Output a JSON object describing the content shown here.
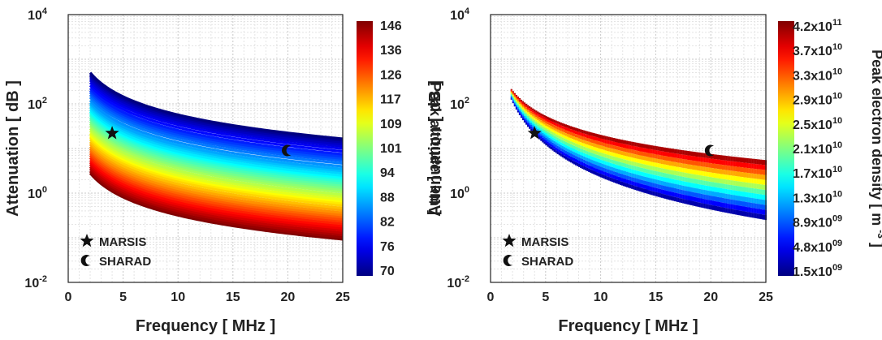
{
  "chart_data": [
    {
      "type": "line",
      "xlabel": "Frequency [ MHz ]",
      "ylabel": "Attenuation [ dB ]",
      "xlim": [
        0,
        25
      ],
      "ylim": [
        0.01,
        10000
      ],
      "yscale": "log",
      "grid": true,
      "x_ticks": [
        "0",
        "5",
        "10",
        "15",
        "20",
        "25"
      ],
      "y_ticks": [
        {
          "base": "10",
          "exp": "-2"
        },
        {
          "base": "10",
          "exp": "0"
        },
        {
          "base": "10",
          "exp": "2"
        },
        {
          "base": "10",
          "exp": "4"
        }
      ],
      "colorbar": {
        "label": "Peak altitude [ km ]",
        "ticks": [
          "146",
          "136",
          "126",
          "117",
          "109",
          "101",
          "94",
          "88",
          "82",
          "76",
          "70"
        ]
      },
      "curve_law": "A ∝ 1/f^1.35 from 2 MHz to 25 MHz, one curve per peak altitude",
      "curves_at_2MHz_dB": [
        500,
        460,
        420,
        380,
        340,
        300,
        260,
        225,
        200,
        180,
        160,
        140,
        120,
        105,
        95,
        85,
        75,
        68,
        62,
        56,
        50,
        45,
        40,
        36,
        32,
        28,
        25,
        22,
        20,
        18,
        16,
        14,
        12.5,
        11,
        9.8,
        8.8,
        7.8,
        7,
        6.2,
        5.5,
        4.9,
        4.4,
        3.9,
        3.5,
        3.1,
        2.8
      ],
      "markers": [
        {
          "name": "MARSIS",
          "symbol": "star",
          "x": 4,
          "y": 22
        },
        {
          "name": "SHARAD",
          "symbol": "crescent",
          "x": 20,
          "y": 9
        }
      ],
      "legend": [
        "MARSIS",
        "SHARAD"
      ],
      "legend_position": "bottom-left"
    },
    {
      "type": "scatter",
      "xlabel": "Frequency [ MHz ]",
      "ylabel": "Attenuation [ dB ]",
      "xlim": [
        0,
        25
      ],
      "ylim": [
        0.01,
        10000
      ],
      "yscale": "log",
      "grid": true,
      "x_ticks": [
        "0",
        "5",
        "10",
        "15",
        "20",
        "25"
      ],
      "y_ticks": [
        {
          "base": "10",
          "exp": "-2"
        },
        {
          "base": "10",
          "exp": "0"
        },
        {
          "base": "10",
          "exp": "2"
        },
        {
          "base": "10",
          "exp": "4"
        }
      ],
      "colorbar": {
        "label": "Peak electron density [ m",
        "label_sup": "-3",
        "label_end": "]",
        "ticks": [
          {
            "base": "4.2x10",
            "exp": "11"
          },
          {
            "base": "3.7x10",
            "exp": "10"
          },
          {
            "base": "3.3x10",
            "exp": "10"
          },
          {
            "base": "2.9x10",
            "exp": "10"
          },
          {
            "base": "2.5x10",
            "exp": "10"
          },
          {
            "base": "2.1x10",
            "exp": "10"
          },
          {
            "base": "1.7x10",
            "exp": "10"
          },
          {
            "base": "1.3x10",
            "exp": "10"
          },
          {
            "base": "8.9x10",
            "exp": "09"
          },
          {
            "base": "4.8x10",
            "exp": "09"
          },
          {
            "base": "1.5x10",
            "exp": "09"
          }
        ]
      },
      "band": {
        "top_at_2MHz_dB": 200,
        "bottom_at_2MHz_dB": 110,
        "top_at_25MHz_dB": 5.5,
        "bottom_at_25MHz_dB": 0.25
      },
      "markers": [
        {
          "name": "MARSIS",
          "symbol": "star",
          "x": 4,
          "y": 22
        },
        {
          "name": "SHARAD",
          "symbol": "crescent",
          "x": 20,
          "y": 9
        }
      ],
      "legend": [
        "MARSIS",
        "SHARAD"
      ],
      "legend_position": "bottom-left"
    }
  ]
}
